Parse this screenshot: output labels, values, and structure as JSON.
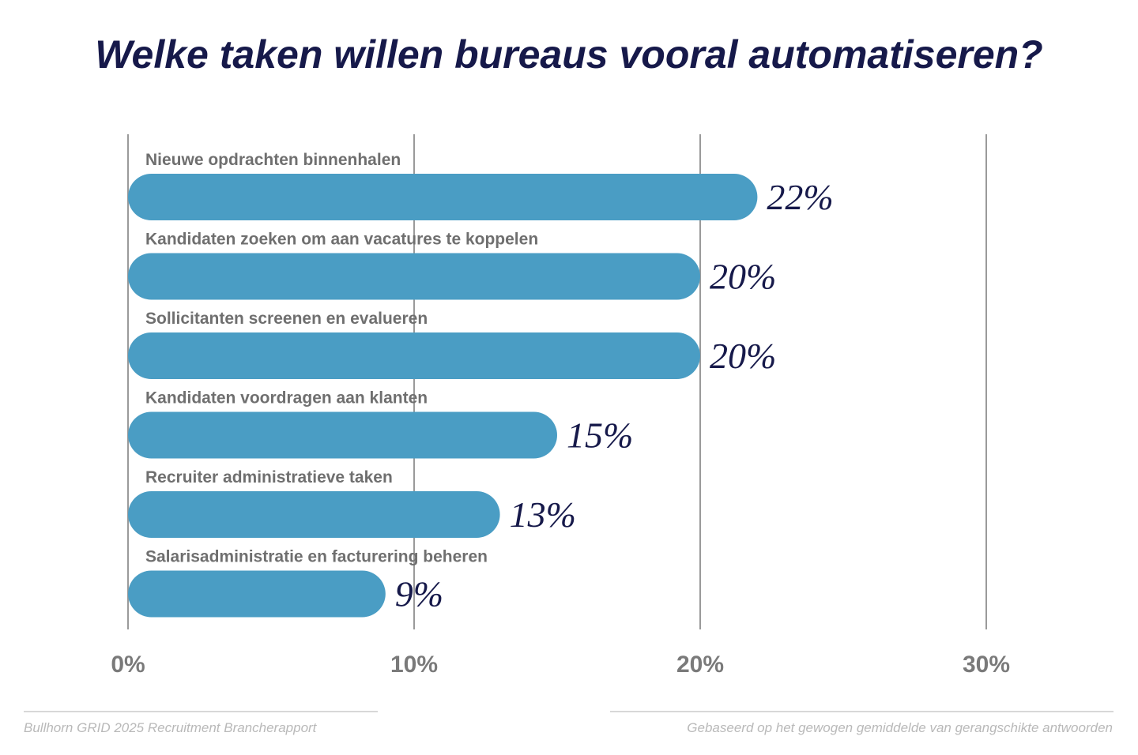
{
  "chart_data": {
    "type": "bar",
    "orientation": "horizontal",
    "title": "Welke taken willen bureaus vooral automatiseren?",
    "categories": [
      "Nieuwe opdrachten binnenhalen",
      "Kandidaten zoeken om aan vacatures te koppelen",
      "Sollicitanten screenen en evalueren",
      "Kandidaten voordragen aan klanten",
      "Recruiter administratieve taken",
      "Salarisadministratie en facturering beheren"
    ],
    "values": [
      22,
      20,
      20,
      15,
      13,
      9
    ],
    "value_labels": [
      "22%",
      "20%",
      "20%",
      "15%",
      "13%",
      "9%"
    ],
    "x_ticks": [
      0,
      10,
      20,
      30
    ],
    "x_tick_labels": [
      "0%",
      "10%",
      "20%",
      "30%"
    ],
    "xlim": [
      0,
      30
    ],
    "grid": true,
    "colors": {
      "bar": "#4a9dc4",
      "title": "#16194a",
      "value_label": "#16194a",
      "category_label": "#6f6f6f",
      "tick_label": "#7a7a7a",
      "grid": "#9a9a9a"
    }
  },
  "footer": {
    "source": "Bullhorn GRID 2025 Recruitment Brancherapport",
    "note": "Gebaseerd op het gewogen gemiddelde van gerangschikte antwoorden"
  }
}
